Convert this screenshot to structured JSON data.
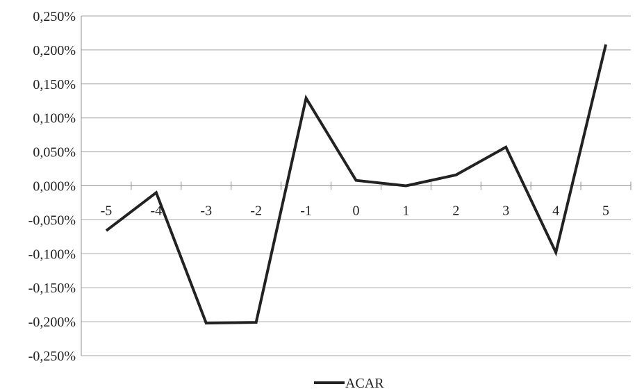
{
  "chart_data": {
    "type": "line",
    "categories": [
      "-5",
      "-4",
      "-3",
      "-2",
      "-1",
      "0",
      "1",
      "2",
      "3",
      "4",
      "5"
    ],
    "series": [
      {
        "name": "ACAR",
        "values": [
          -0.066,
          -0.01,
          -0.202,
          -0.201,
          0.129,
          0.008,
          0.0,
          0.016,
          0.057,
          -0.098,
          0.208
        ],
        "color": "#222222"
      }
    ],
    "ylim": [
      -0.25,
      0.25
    ],
    "yticks": [
      0.25,
      0.2,
      0.15,
      0.1,
      0.05,
      0,
      -0.05,
      -0.1,
      -0.15,
      -0.2,
      -0.25
    ],
    "ytick_labels": [
      "0,250%",
      "0,200%",
      "0,150%",
      "0,100%",
      "0,050%",
      "0,000%",
      "-0,050%",
      "-0,100%",
      "-0,150%",
      "-0,200%",
      "-0,250%"
    ],
    "grid": true,
    "legend_position": "bottom-center",
    "colors": {
      "gridline": "#a6a6a6",
      "axis": "#8c8c8c",
      "text": "#222222"
    }
  }
}
